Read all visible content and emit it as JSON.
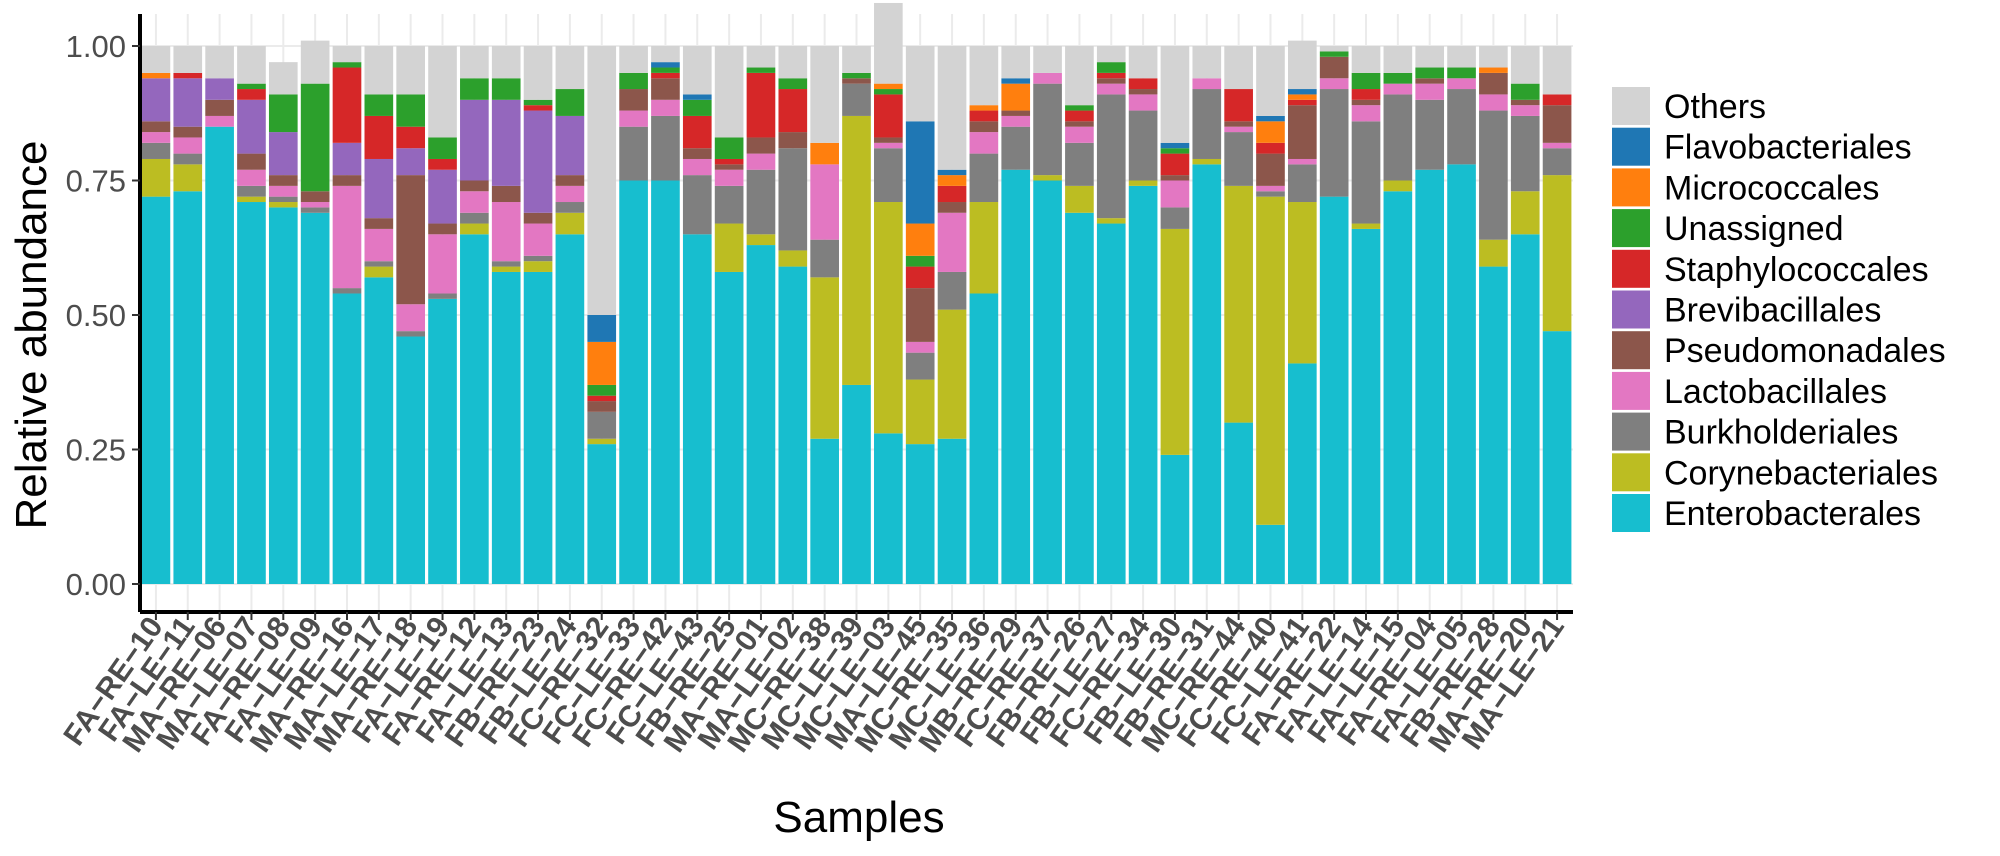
{
  "chart_data": {
    "type": "bar",
    "stacked": true,
    "xlabel": "Samples",
    "ylabel": "Relative abundance",
    "ylim": [
      0,
      1
    ],
    "yticks": [
      "0.00",
      "0.25",
      "0.50",
      "0.75",
      "1.00"
    ],
    "grid": true,
    "legend_position": "right",
    "categories": [
      "FA-RE-10",
      "FA-LE-11",
      "MA-RE-06",
      "MA-LE-07",
      "FA-RE-08",
      "FA-LE-09",
      "MA-RE-16",
      "MA-LE-17",
      "MA-RE-18",
      "FA-LE-19",
      "FA-RE-12",
      "FA-LE-13",
      "FB-RE-23",
      "FB-LE-24",
      "FC-RE-32",
      "FC-LE-33",
      "FC-RE-42",
      "FC-LE-43",
      "FB-RE-25",
      "MA-RE-01",
      "MA-LE-02",
      "MC-RE-38",
      "MC-LE-39",
      "MC-LE-03",
      "MA-LE-45",
      "MC-RE-35",
      "MC-LE-36",
      "MB-RE-29",
      "FC-RE-37",
      "FB-RE-26",
      "FB-LE-27",
      "FC-RE-34",
      "FB-LE-30",
      "FB-RE-31",
      "MC-RE-44",
      "FC-RE-40",
      "FC-LE-41",
      "FA-RE-22",
      "FA-LE-14",
      "FA-LE-15",
      "FA-RE-04",
      "FA-LE-05",
      "FB-RE-28",
      "MA-RE-20",
      "MA-LE-21"
    ],
    "series": [
      {
        "name": "Enterobacterales",
        "color": "#17becf",
        "values": [
          0.72,
          0.73,
          0.85,
          0.71,
          0.7,
          0.69,
          0.54,
          0.57,
          0.46,
          0.53,
          0.65,
          0.58,
          0.58,
          0.65,
          0.26,
          0.75,
          0.75,
          0.65,
          0.58,
          0.63,
          0.59,
          0.27,
          0.37,
          0.28,
          0.26,
          0.27,
          0.54,
          0.77,
          0.75,
          0.69,
          0.67,
          0.74,
          0.24,
          0.78,
          0.3,
          0.11,
          0.41,
          0.72,
          0.66,
          0.73,
          0.77,
          0.78,
          0.59,
          0.65,
          0.47
        ]
      },
      {
        "name": "Corynebacteriales",
        "color": "#bcbd22",
        "values": [
          0.07,
          0.05,
          0.0,
          0.01,
          0.01,
          0.0,
          0.0,
          0.02,
          0.0,
          0.0,
          0.02,
          0.01,
          0.02,
          0.04,
          0.01,
          0.0,
          0.0,
          0.0,
          0.09,
          0.02,
          0.03,
          0.3,
          0.5,
          0.43,
          0.12,
          0.24,
          0.17,
          0.0,
          0.01,
          0.05,
          0.01,
          0.01,
          0.42,
          0.01,
          0.44,
          0.61,
          0.3,
          0.0,
          0.01,
          0.02,
          0.0,
          0.0,
          0.05,
          0.08,
          0.29
        ]
      },
      {
        "name": "Burkholderiales",
        "color": "#7f7f7f",
        "values": [
          0.03,
          0.02,
          0.0,
          0.02,
          0.01,
          0.01,
          0.01,
          0.01,
          0.01,
          0.01,
          0.02,
          0.01,
          0.01,
          0.02,
          0.05,
          0.1,
          0.12,
          0.11,
          0.07,
          0.12,
          0.19,
          0.07,
          0.06,
          0.1,
          0.05,
          0.07,
          0.09,
          0.08,
          0.17,
          0.08,
          0.23,
          0.13,
          0.04,
          0.13,
          0.1,
          0.01,
          0.07,
          0.2,
          0.19,
          0.16,
          0.13,
          0.14,
          0.24,
          0.14,
          0.05
        ]
      },
      {
        "name": "Lactobacillales",
        "color": "#e377c2",
        "values": [
          0.02,
          0.03,
          0.02,
          0.03,
          0.02,
          0.01,
          0.19,
          0.06,
          0.05,
          0.11,
          0.04,
          0.11,
          0.06,
          0.03,
          0.0,
          0.03,
          0.03,
          0.03,
          0.03,
          0.03,
          0.0,
          0.14,
          0.0,
          0.01,
          0.02,
          0.11,
          0.04,
          0.02,
          0.02,
          0.03,
          0.02,
          0.03,
          0.05,
          0.02,
          0.01,
          0.01,
          0.01,
          0.02,
          0.03,
          0.02,
          0.03,
          0.02,
          0.03,
          0.02,
          0.01
        ]
      },
      {
        "name": "Pseudomonadales",
        "color": "#8c564b",
        "values": [
          0.02,
          0.02,
          0.03,
          0.03,
          0.02,
          0.02,
          0.02,
          0.02,
          0.24,
          0.02,
          0.02,
          0.03,
          0.02,
          0.02,
          0.02,
          0.04,
          0.04,
          0.02,
          0.01,
          0.03,
          0.03,
          0.0,
          0.01,
          0.01,
          0.1,
          0.02,
          0.02,
          0.01,
          0.0,
          0.01,
          0.01,
          0.01,
          0.01,
          0.0,
          0.01,
          0.06,
          0.1,
          0.04,
          0.01,
          0.0,
          0.01,
          0.0,
          0.04,
          0.01,
          0.07
        ]
      },
      {
        "name": "Brevibacillales",
        "color": "#9467bd",
        "values": [
          0.08,
          0.09,
          0.04,
          0.1,
          0.08,
          0.0,
          0.06,
          0.11,
          0.05,
          0.1,
          0.15,
          0.16,
          0.19,
          0.11,
          0.0,
          0.0,
          0.0,
          0.0,
          0.0,
          0.0,
          0.0,
          0.0,
          0.0,
          0.0,
          0.0,
          0.0,
          0.0,
          0.0,
          0.0,
          0.0,
          0.0,
          0.0,
          0.0,
          0.0,
          0.0,
          0.0,
          0.0,
          0.0,
          0.0,
          0.0,
          0.0,
          0.0,
          0.0,
          0.0,
          0.0
        ]
      },
      {
        "name": "Staphylococcales",
        "color": "#d62728",
        "values": [
          0.0,
          0.01,
          0.0,
          0.02,
          0.0,
          0.0,
          0.14,
          0.08,
          0.04,
          0.02,
          0.0,
          0.0,
          0.01,
          0.0,
          0.01,
          0.0,
          0.01,
          0.06,
          0.01,
          0.12,
          0.08,
          0.0,
          0.0,
          0.08,
          0.04,
          0.03,
          0.02,
          0.0,
          0.0,
          0.02,
          0.01,
          0.02,
          0.04,
          0.0,
          0.06,
          0.02,
          0.01,
          0.0,
          0.02,
          0.0,
          0.0,
          0.0,
          0.0,
          0.0,
          0.02
        ]
      },
      {
        "name": "Unassigned",
        "color": "#2ca02c",
        "values": [
          0.0,
          0.0,
          0.0,
          0.01,
          0.07,
          0.2,
          0.01,
          0.04,
          0.06,
          0.04,
          0.04,
          0.04,
          0.01,
          0.05,
          0.02,
          0.03,
          0.01,
          0.03,
          0.04,
          0.01,
          0.02,
          0.0,
          0.01,
          0.01,
          0.02,
          0.0,
          0.0,
          0.0,
          0.0,
          0.01,
          0.02,
          0.0,
          0.01,
          0.0,
          0.0,
          0.0,
          0.0,
          0.01,
          0.03,
          0.02,
          0.02,
          0.02,
          0.0,
          0.03,
          0.0
        ]
      },
      {
        "name": "Micrococcales",
        "color": "#ff7f0e",
        "values": [
          0.01,
          0.0,
          0.0,
          0.0,
          0.0,
          0.0,
          0.0,
          0.0,
          0.0,
          0.0,
          0.0,
          0.0,
          0.0,
          0.0,
          0.08,
          0.0,
          0.0,
          0.0,
          0.0,
          0.0,
          0.0,
          0.04,
          0.0,
          0.01,
          0.06,
          0.02,
          0.01,
          0.05,
          0.0,
          0.0,
          0.0,
          0.0,
          0.0,
          0.0,
          0.0,
          0.04,
          0.01,
          0.0,
          0.0,
          0.0,
          0.0,
          0.0,
          0.01,
          0.0,
          0.0
        ]
      },
      {
        "name": "Flavobacteriales",
        "color": "#1f77b4",
        "values": [
          0.0,
          0.0,
          0.0,
          0.0,
          0.0,
          0.0,
          0.0,
          0.0,
          0.0,
          0.0,
          0.0,
          0.0,
          0.0,
          0.0,
          0.05,
          0.0,
          0.01,
          0.01,
          0.0,
          0.0,
          0.0,
          0.0,
          0.0,
          0.0,
          0.19,
          0.01,
          0.0,
          0.01,
          0.0,
          0.0,
          0.0,
          0.0,
          0.01,
          0.0,
          0.0,
          0.01,
          0.01,
          0.0,
          0.0,
          0.0,
          0.0,
          0.0,
          0.0,
          0.0,
          0.0
        ]
      },
      {
        "name": "Others",
        "color": "#d3d3d3",
        "values": [
          0.05,
          0.05,
          0.06,
          0.07,
          0.06,
          0.08,
          0.03,
          0.09,
          0.09,
          0.17,
          0.06,
          0.06,
          0.1,
          0.08,
          0.5,
          0.05,
          0.03,
          0.09,
          0.17,
          0.04,
          0.06,
          0.18,
          0.05,
          0.15,
          0.14,
          0.23,
          0.11,
          0.06,
          0.05,
          0.11,
          0.03,
          0.06,
          0.18,
          0.06,
          0.08,
          0.13,
          0.09,
          0.01,
          0.05,
          0.05,
          0.04,
          0.04,
          0.04,
          0.07,
          0.09
        ]
      }
    ]
  }
}
